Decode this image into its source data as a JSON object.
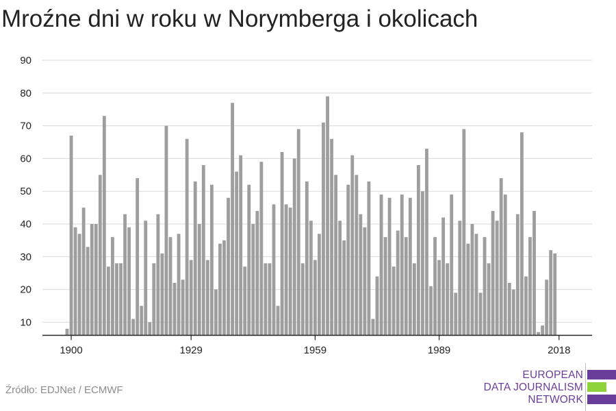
{
  "title": "Mroźne dni w roku w Norymberga i okolicach",
  "source": "Źródło: EDJNet / ECMWF",
  "logo": {
    "line1": "EUROPEAN",
    "line2": "DATA JOURNALISM",
    "line3": "NETWORK",
    "text_color": "#6a3d9a",
    "bar_colors": [
      "#6a3d9a",
      "#8ed33c",
      "#6a3d9a"
    ]
  },
  "colors": {
    "bar": "#9e9e9e",
    "grid": "#d9d9d9",
    "axis": "#222222"
  },
  "chart_data": {
    "type": "bar",
    "title": "Mroźne dni w roku w Norymberga i okolicach",
    "xlabel": "",
    "ylabel": "",
    "x_start": 1899,
    "x_end": 2019,
    "x_ticks": [
      1900,
      1929,
      1959,
      1989,
      2018
    ],
    "y_ticks": [
      10,
      20,
      30,
      40,
      50,
      60,
      70,
      80,
      90
    ],
    "ylim": [
      6,
      92
    ],
    "grid": true,
    "legend": "none",
    "values": [
      8,
      67,
      39,
      37,
      45,
      33,
      40,
      40,
      55,
      73,
      27,
      36,
      28,
      28,
      43,
      39,
      11,
      54,
      15,
      41,
      10,
      28,
      43,
      31,
      70,
      36,
      22,
      37,
      23,
      66,
      29,
      53,
      40,
      58,
      29,
      52,
      20,
      34,
      35,
      48,
      77,
      56,
      61,
      27,
      52,
      40,
      44,
      59,
      28,
      28,
      46,
      15,
      62,
      46,
      45,
      60,
      69,
      28,
      53,
      41,
      29,
      37,
      71,
      79,
      66,
      55,
      41,
      35,
      52,
      61,
      55,
      43,
      39,
      53,
      11,
      24,
      49,
      36,
      48,
      27,
      38,
      49,
      36,
      48,
      28,
      58,
      50,
      63,
      21,
      36,
      29,
      42,
      28,
      49,
      19,
      41,
      69,
      34,
      40,
      37,
      19,
      36,
      28,
      44,
      41,
      54,
      49,
      22,
      20,
      43,
      68,
      24,
      36,
      44,
      7,
      9,
      23,
      32,
      31
    ]
  }
}
